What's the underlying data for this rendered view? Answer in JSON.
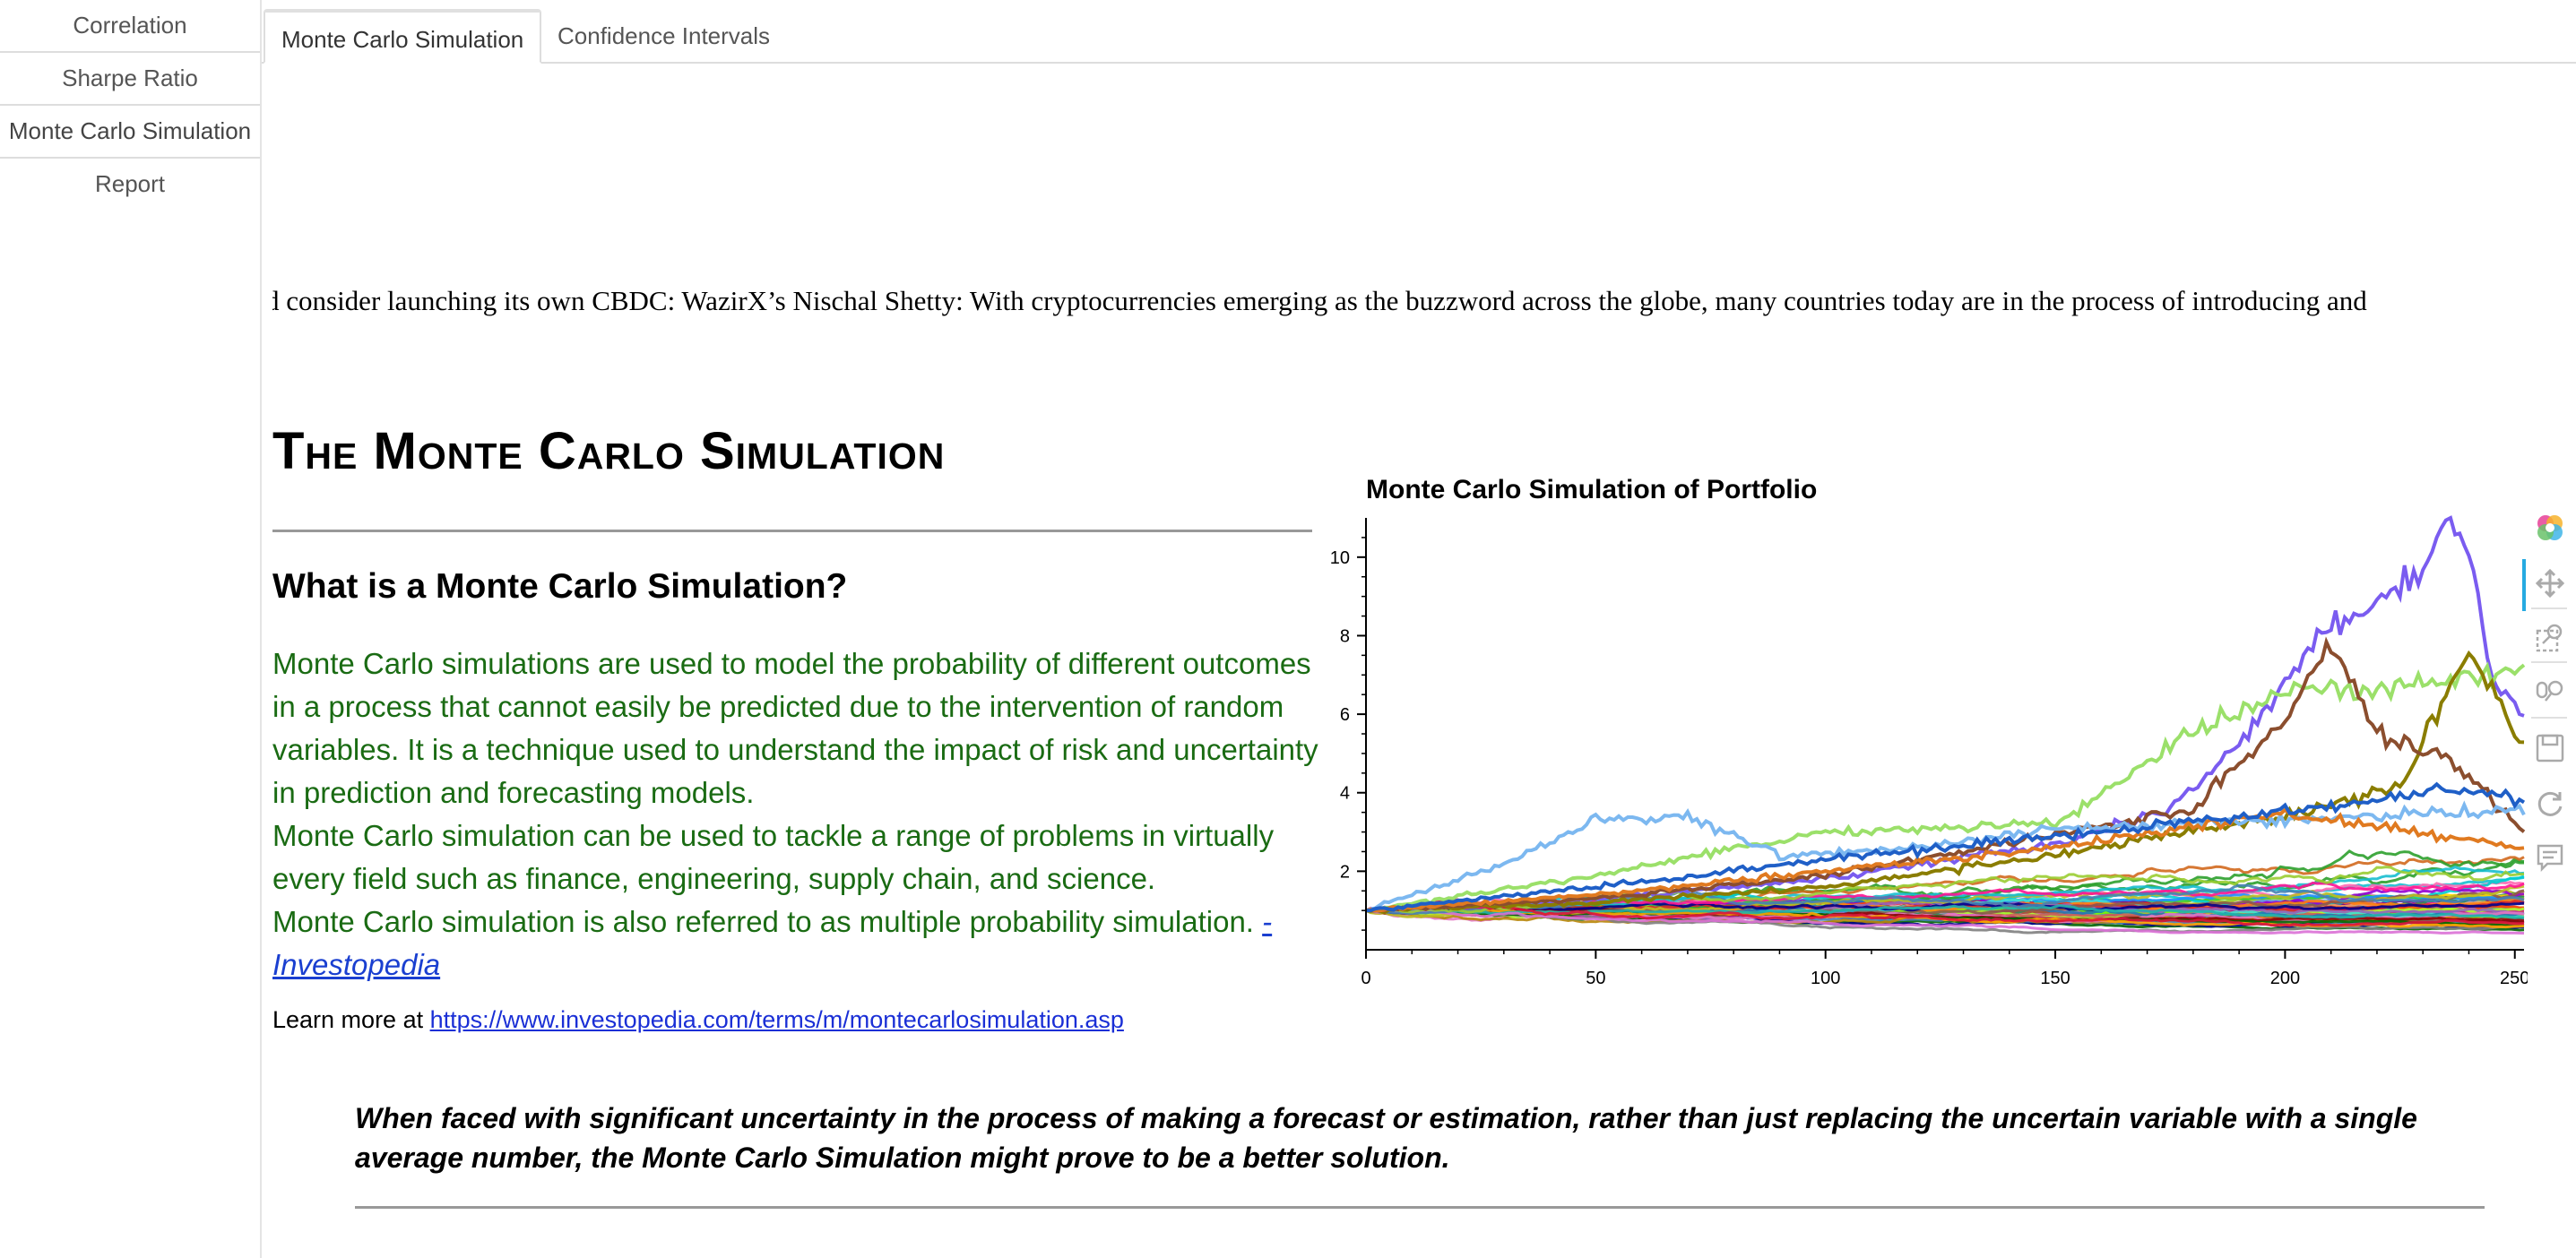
{
  "sidebar": {
    "items": [
      {
        "label": "Correlation"
      },
      {
        "label": "Sharpe Ratio"
      },
      {
        "label": "Monte Carlo Simulation"
      },
      {
        "label": "Report"
      }
    ],
    "active_index": 2
  },
  "tabs": [
    {
      "label": "Monte Carlo Simulation",
      "active": true
    },
    {
      "label": "Confidence Intervals",
      "active": false
    }
  ],
  "ticker": {
    "text": "d consider launching its own CBDC: WazirX’s Nischal Shetty: With cryptocurrencies emerging as the buzzword across the globe, many countries today are in the process of introducing and"
  },
  "main": {
    "title": "The Monte Carlo Simulation",
    "subtitle": "What is a Monte Carlo Simulation?",
    "paragraphs": [
      "Monte Carlo simulations are used to model the probability of different outcomes in a process that cannot easily be predicted due to the intervention of random variables. It is a technique used to understand the impact of risk and uncertainty in prediction and forecasting models.",
      "Monte Carlo simulation can be used to tackle a range of problems in virtually every field such as finance, engineering, supply chain, and science.",
      "Monte Carlo simulation is also referred to as multiple probability simulation. "
    ],
    "source_link": "- Investopedia",
    "learn_prefix": "Learn more at ",
    "learn_link": "https://www.investopedia.com/terms/m/montecarlosimulation.asp",
    "quote": "When faced with significant uncertainty in the process of making a forecast or estimation, rather than just replacing the uncertain variable with a single average number, the Monte Carlo Simulation might prove to be a better solution."
  },
  "toolbar": {
    "icons": [
      "bokeh-logo-icon",
      "pan-icon",
      "box-zoom-icon",
      "wheel-zoom-icon",
      "save-icon",
      "reset-icon",
      "hover-icon"
    ],
    "active_color": "#26aae1"
  },
  "chart_data": {
    "type": "line",
    "title": "Monte Carlo Simulation of Portfolio",
    "xlabel": "",
    "ylabel": "",
    "xlim": [
      0,
      252
    ],
    "ylim": [
      0,
      11
    ],
    "x_ticks": [
      0,
      50,
      100,
      150,
      200,
      250
    ],
    "y_ticks": [
      2,
      4,
      6,
      8,
      10
    ],
    "grid": false,
    "legend": "none",
    "steps": 252,
    "n_series": 60,
    "highlight_series": [
      {
        "name": "",
        "color": "#7a5cf0",
        "x": [
          0,
          50,
          100,
          150,
          175,
          190,
          200,
          210,
          220,
          230,
          235,
          240,
          245,
          252
        ],
        "values": [
          1.0,
          1.3,
          1.8,
          2.7,
          3.6,
          5.2,
          6.8,
          8.2,
          8.7,
          9.6,
          11.0,
          10.2,
          7.0,
          5.9
        ]
      },
      {
        "name": "",
        "color": "#9be06a",
        "x": [
          0,
          50,
          100,
          150,
          175,
          200,
          225,
          240,
          252
        ],
        "values": [
          1.0,
          1.9,
          3.0,
          3.2,
          5.2,
          6.6,
          6.7,
          6.9,
          7.2
        ]
      },
      {
        "name": "",
        "color": "#8a7d00",
        "x": [
          0,
          50,
          100,
          150,
          200,
          225,
          240,
          245,
          252
        ],
        "values": [
          1.0,
          1.2,
          1.6,
          2.4,
          3.4,
          4.2,
          7.5,
          6.8,
          5.1
        ]
      },
      {
        "name": "",
        "color": "#8b4e2e",
        "x": [
          0,
          50,
          100,
          150,
          180,
          200,
          210,
          220,
          235,
          252
        ],
        "values": [
          1.0,
          1.3,
          1.9,
          2.9,
          3.6,
          5.8,
          7.9,
          5.5,
          4.9,
          3.0
        ]
      },
      {
        "name": "",
        "color": "#7cb8f0",
        "x": [
          0,
          30,
          50,
          70,
          90,
          120,
          150,
          200,
          252
        ],
        "values": [
          1.0,
          2.2,
          3.3,
          3.4,
          2.4,
          2.6,
          3.1,
          3.3,
          3.6
        ]
      },
      {
        "name": "",
        "color": "#e07a20",
        "x": [
          0,
          50,
          100,
          150,
          200,
          252
        ],
        "values": [
          1.0,
          1.4,
          2.0,
          2.6,
          3.5,
          2.6
        ]
      },
      {
        "name": "",
        "color": "#1f5fc7",
        "x": [
          0,
          50,
          100,
          150,
          200,
          235,
          252
        ],
        "values": [
          1.0,
          1.6,
          2.3,
          2.9,
          3.5,
          4.1,
          3.8
        ]
      }
    ]
  }
}
